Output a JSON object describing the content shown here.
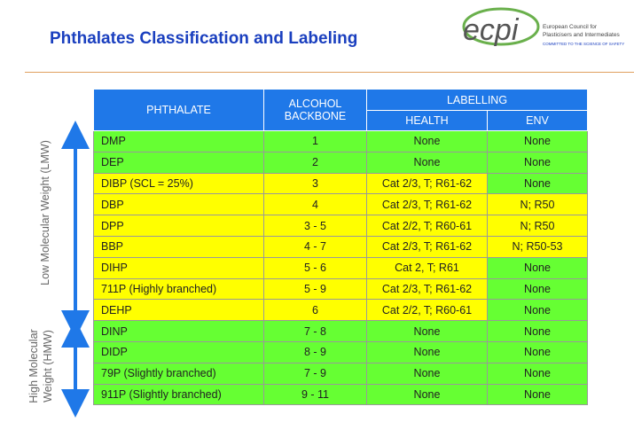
{
  "header": {
    "title": "Phthalates Classification and Labeling"
  },
  "logo": {
    "brand": "ecpi",
    "line1": "European Council for",
    "line2": "Plasticisers and Intermediates",
    "tagline": "COMMITTED TO THE SCIENCE OF SAFETY"
  },
  "side_labels": {
    "lmw": "Low Molecular Weight (LMW)",
    "hmw_line1": "High Molecular",
    "hmw_line2": "Weight (HMW)"
  },
  "table": {
    "headers": {
      "phthalate": "PHTHALATE",
      "alcohol": "ALCOHOL BACKBONE",
      "labelling": "LABELLING",
      "health": "HEALTH",
      "env": "ENV"
    },
    "rows": [
      [
        "DMP",
        "1",
        "None",
        "None"
      ],
      [
        "DEP",
        "2",
        "None",
        "None"
      ],
      [
        "DIBP (SCL = 25%)",
        "3",
        "Cat 2/3, T; R61-62",
        "None"
      ],
      [
        "DBP",
        "4",
        "Cat 2/3, T; R61-62",
        "N; R50"
      ],
      [
        "DPP",
        "3 - 5",
        "Cat 2/2, T; R60-61",
        "N; R50"
      ],
      [
        "BBP",
        "4 - 7",
        "Cat 2/3, T; R61-62",
        "N; R50-53"
      ],
      [
        "DIHP",
        "5 - 6",
        "Cat 2, T; R61",
        "None"
      ],
      [
        "711P (Highly branched)",
        "5 - 9",
        "Cat 2/3, T; R61-62",
        "None"
      ],
      [
        "DEHP",
        "6",
        "Cat 2/2, T; R60-61",
        "None"
      ],
      [
        "DINP",
        "7 - 8",
        "None",
        "None"
      ],
      [
        "DIDP",
        "8 - 9",
        "None",
        "None"
      ],
      [
        "79P (Slightly branched)",
        "7 - 9",
        "None",
        "None"
      ],
      [
        "911P (Slightly branched)",
        "9 - 11",
        "None",
        "None"
      ]
    ]
  }
}
